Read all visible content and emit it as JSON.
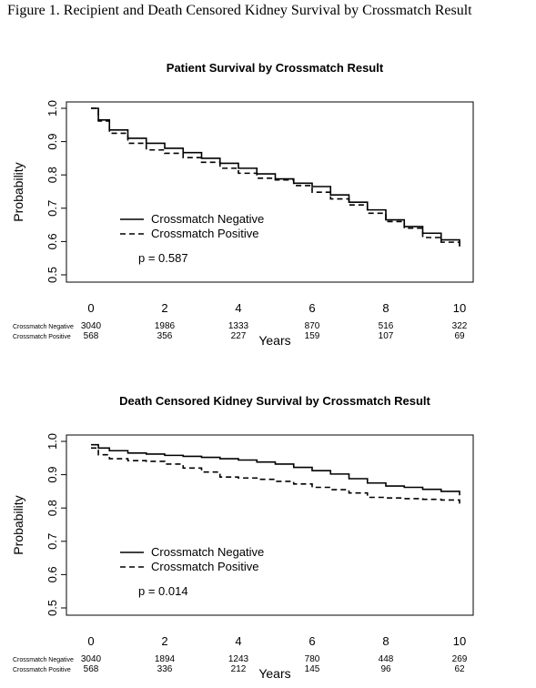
{
  "figure_title": "Figure 1. Recipient and Death Censored Kidney Survival by Crossmatch Result",
  "chart_data": [
    {
      "type": "line",
      "title": "Patient Survival by Crossmatch Result",
      "ylabel": "Probability",
      "xlabel": "Years",
      "xlim": [
        0,
        10
      ],
      "ylim": [
        0.5,
        1.0
      ],
      "xticks": [
        "0",
        "2",
        "4",
        "6",
        "8",
        "10"
      ],
      "yticks": [
        "0.5",
        "0.6",
        "0.7",
        "0.8",
        "0.9",
        "1.0"
      ],
      "grid": false,
      "legend_position": "center-left",
      "annotation": "p = 0.587",
      "series": [
        {
          "name": "Crossmatch Negative",
          "line_style": "solid",
          "x": [
            0,
            0.2,
            0.5,
            1,
            1.5,
            2,
            2.5,
            3,
            3.5,
            4,
            4.5,
            5,
            5.5,
            6,
            6.5,
            7,
            7.5,
            8,
            8.5,
            9,
            9.5,
            10
          ],
          "y": [
            1.0,
            0.965,
            0.935,
            0.91,
            0.895,
            0.88,
            0.867,
            0.85,
            0.835,
            0.82,
            0.803,
            0.788,
            0.775,
            0.765,
            0.74,
            0.718,
            0.695,
            0.665,
            0.645,
            0.625,
            0.605,
            0.585
          ]
        },
        {
          "name": "Crossmatch Positive",
          "line_style": "dashed",
          "x": [
            0,
            0.2,
            0.5,
            1,
            1.5,
            2,
            2.5,
            3,
            3.5,
            4,
            4.5,
            5,
            5.5,
            6,
            6.5,
            7,
            7.5,
            8,
            8.5,
            9,
            9.5,
            10
          ],
          "y": [
            1.0,
            0.962,
            0.925,
            0.895,
            0.875,
            0.865,
            0.852,
            0.838,
            0.82,
            0.805,
            0.79,
            0.785,
            0.768,
            0.748,
            0.728,
            0.71,
            0.685,
            0.66,
            0.64,
            0.612,
            0.598,
            0.588
          ]
        }
      ],
      "risk_table": {
        "rows": [
          {
            "label": "Crossmatch Negative",
            "counts": [
              "3040",
              "1986",
              "1333",
              "870",
              "516",
              "322"
            ]
          },
          {
            "label": "Crossmatch Positive",
            "counts": [
              "568",
              "356",
              "227",
              "159",
              "107",
              "69"
            ]
          }
        ]
      }
    },
    {
      "type": "line",
      "title": "Death Censored Kidney Survival by Crossmatch Result",
      "ylabel": "Probability",
      "xlabel": "Years",
      "xlim": [
        0,
        10
      ],
      "ylim": [
        0.5,
        1.0
      ],
      "xticks": [
        "0",
        "2",
        "4",
        "6",
        "8",
        "10"
      ],
      "yticks": [
        "0.5",
        "0.6",
        "0.7",
        "0.8",
        "0.9",
        "1.0"
      ],
      "grid": false,
      "legend_position": "center-left",
      "annotation": "p = 0.014",
      "series": [
        {
          "name": "Crossmatch Negative",
          "line_style": "solid",
          "x": [
            0,
            0.2,
            0.5,
            1,
            1.5,
            2,
            2.5,
            3,
            3.5,
            4,
            4.5,
            5,
            5.5,
            6,
            6.5,
            7,
            7.5,
            8,
            8.5,
            9,
            9.5,
            10
          ],
          "y": [
            0.99,
            0.98,
            0.972,
            0.965,
            0.962,
            0.958,
            0.955,
            0.952,
            0.948,
            0.944,
            0.938,
            0.932,
            0.922,
            0.912,
            0.902,
            0.888,
            0.875,
            0.866,
            0.862,
            0.856,
            0.85,
            0.838
          ]
        },
        {
          "name": "Crossmatch Positive",
          "line_style": "dashed",
          "x": [
            0,
            0.2,
            0.5,
            1,
            1.5,
            2,
            2.5,
            3,
            3.5,
            4,
            4.5,
            5,
            5.5,
            6,
            6.5,
            7,
            7.5,
            8,
            8.5,
            9,
            9.5,
            10
          ],
          "y": [
            0.98,
            0.96,
            0.948,
            0.942,
            0.94,
            0.932,
            0.92,
            0.908,
            0.893,
            0.89,
            0.886,
            0.88,
            0.872,
            0.862,
            0.855,
            0.845,
            0.832,
            0.83,
            0.828,
            0.826,
            0.824,
            0.81
          ]
        }
      ],
      "risk_table": {
        "rows": [
          {
            "label": "Crossmatch Negative",
            "counts": [
              "3040",
              "1894",
              "1243",
              "780",
              "448",
              "269"
            ]
          },
          {
            "label": "Crossmatch Positive",
            "counts": [
              "568",
              "336",
              "212",
              "145",
              "96",
              "62"
            ]
          }
        ]
      }
    }
  ]
}
